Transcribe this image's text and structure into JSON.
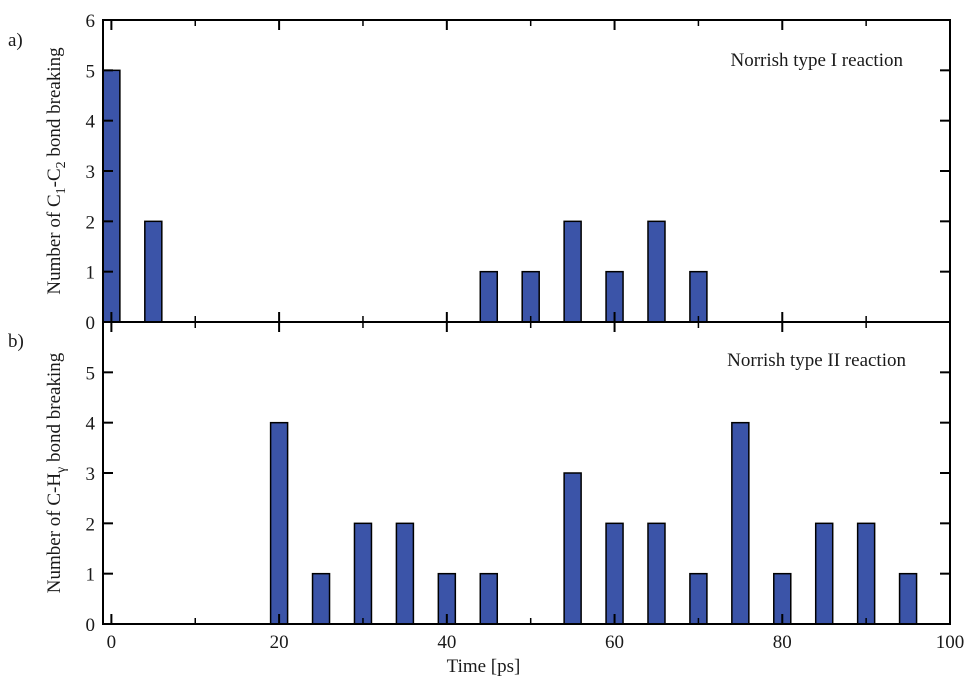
{
  "chart_data": [
    {
      "type": "bar",
      "panel_label": "a)",
      "annotation": "Norrish type I reaction",
      "ylabel": {
        "prefix": "Number of C",
        "sub1": "1",
        "mid": "-C",
        "sub2": "2",
        "suffix": " bond breaking"
      },
      "xlabel": "",
      "ylim": [
        0,
        6
      ],
      "yticks": [
        0,
        1,
        2,
        3,
        4,
        5,
        6
      ],
      "xlim": [
        -1,
        100
      ],
      "xticks": [
        0,
        20,
        40,
        60,
        80,
        100
      ],
      "show_xtick_labels": false,
      "bar_color": "#3b54a8",
      "x": [
        0,
        5,
        45,
        50,
        55,
        60,
        65,
        70
      ],
      "values": [
        5,
        2,
        1,
        1,
        2,
        1,
        2,
        1
      ]
    },
    {
      "type": "bar",
      "panel_label": "b)",
      "annotation": "Norrish type II reaction",
      "ylabel": {
        "prefix": "Number of C-H",
        "sub1": "γ",
        "mid": "",
        "sub2": "",
        "suffix": " bond breaking"
      },
      "xlabel": "Time [ps]",
      "ylim": [
        0,
        6
      ],
      "yticks": [
        0,
        1,
        2,
        3,
        4,
        5
      ],
      "xlim": [
        -1,
        100
      ],
      "xticks": [
        0,
        20,
        40,
        60,
        80,
        100
      ],
      "show_xtick_labels": true,
      "bar_color": "#3b54a8",
      "x": [
        20,
        25,
        30,
        35,
        40,
        45,
        55,
        60,
        65,
        70,
        75,
        80,
        85,
        90,
        95
      ],
      "values": [
        4,
        1,
        2,
        2,
        1,
        1,
        3,
        2,
        2,
        1,
        4,
        1,
        2,
        2,
        1
      ]
    }
  ]
}
